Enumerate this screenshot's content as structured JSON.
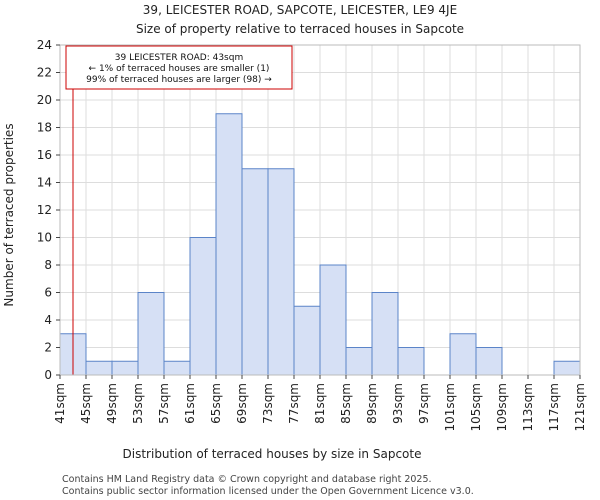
{
  "chart_data": {
    "type": "bar",
    "title_line1": "39, LEICESTER ROAD, SAPCOTE, LEICESTER, LE9 4JE",
    "title_line2": "Size of property relative to terraced houses in Sapcote",
    "xlabel": "Distribution of terraced houses by size in Sapcote",
    "ylabel": "Number of terraced properties",
    "ylim": [
      0,
      24
    ],
    "yticks": [
      0,
      2,
      4,
      6,
      8,
      10,
      12,
      14,
      16,
      18,
      20,
      22,
      24
    ],
    "bin_edges": [
      41,
      45,
      49,
      53,
      57,
      61,
      65,
      69,
      73,
      77,
      81,
      85,
      89,
      93,
      97,
      101,
      105,
      109,
      113,
      117,
      121
    ],
    "tick_labels": [
      "41sqm",
      "45sqm",
      "49sqm",
      "53sqm",
      "57sqm",
      "61sqm",
      "65sqm",
      "69sqm",
      "73sqm",
      "77sqm",
      "81sqm",
      "85sqm",
      "89sqm",
      "93sqm",
      "97sqm",
      "101sqm",
      "105sqm",
      "109sqm",
      "113sqm",
      "117sqm",
      "121sqm"
    ],
    "values": [
      3,
      1,
      1,
      6,
      1,
      10,
      19,
      15,
      15,
      5,
      8,
      2,
      6,
      2,
      0,
      3,
      2,
      0,
      0,
      1
    ],
    "grid": true,
    "bar_color": "#d6e0f5",
    "bar_edge_color": "#5b84c8",
    "marker": {
      "value": 43,
      "color": "#cc0000",
      "annotation": [
        "39 LEICESTER ROAD: 43sqm",
        "← 1% of terraced houses are smaller (1)",
        "99% of terraced houses are larger (98) →"
      ]
    }
  },
  "footer": {
    "line1": "Contains HM Land Registry data © Crown copyright and database right 2025.",
    "line2": "Contains public sector information licensed under the Open Government Licence v3.0."
  }
}
